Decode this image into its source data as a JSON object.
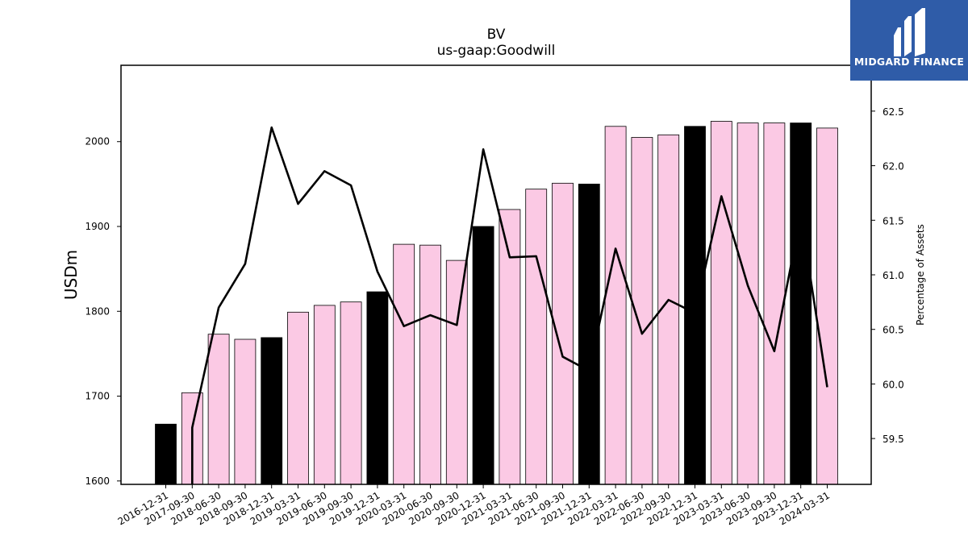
{
  "chart_data": {
    "type": "bar",
    "title": "BV",
    "subtitle": "us-gaap:Goodwill",
    "ylabel": "USDm",
    "ylabel_right": "Percentage of Assets",
    "ylim": [
      1596,
      2090
    ],
    "ylim_right": [
      59.08,
      62.92
    ],
    "yticks": [
      1600,
      1700,
      1800,
      1900,
      2000
    ],
    "yticks_right": [
      59.5,
      60.0,
      60.5,
      61.0,
      61.5,
      62.0,
      62.5
    ],
    "categories": [
      "2016-12-31",
      "2017-09-30",
      "2018-06-30",
      "2018-09-30",
      "2018-12-31",
      "2019-03-31",
      "2019-06-30",
      "2019-09-30",
      "2019-12-31",
      "2020-03-31",
      "2020-06-30",
      "2020-09-30",
      "2020-12-31",
      "2021-03-31",
      "2021-06-30",
      "2021-09-30",
      "2021-12-31",
      "2022-03-31",
      "2022-06-30",
      "2022-09-30",
      "2022-12-31",
      "2023-03-31",
      "2023-06-30",
      "2023-09-30",
      "2023-12-31",
      "2024-03-31"
    ],
    "series": [
      {
        "type": "bar",
        "values": [
          1667,
          1704,
          1773,
          1767,
          1769,
          1799,
          1807,
          1811,
          1823,
          1879,
          1878,
          1860,
          1900,
          1920,
          1944,
          1951,
          1950,
          2018,
          2005,
          2008,
          2018,
          2024,
          2022,
          2022,
          2022,
          2016
        ],
        "annual": [
          true,
          false,
          false,
          false,
          true,
          false,
          false,
          false,
          true,
          false,
          false,
          false,
          true,
          false,
          false,
          false,
          true,
          false,
          false,
          false,
          true,
          false,
          false,
          false,
          true,
          false
        ]
      },
      {
        "type": "line",
        "axis": "right",
        "values": [
          null,
          59.6,
          60.7,
          61.1,
          62.35,
          61.65,
          61.95,
          61.82,
          61.03,
          60.53,
          60.63,
          60.54,
          62.15,
          61.16,
          61.17,
          60.25,
          60.12,
          61.24,
          60.46,
          60.77,
          60.65,
          61.72,
          60.9,
          60.3,
          61.55,
          59.97
        ]
      }
    ],
    "colors": {
      "annual_bar": "#000000",
      "quarter_bar": "#fbc9e4",
      "bar_edge": "#000000",
      "line": "#000000"
    },
    "grid": false
  },
  "logo": {
    "text": "MIDGARD FINANCE",
    "background": "#2f5ca8"
  }
}
